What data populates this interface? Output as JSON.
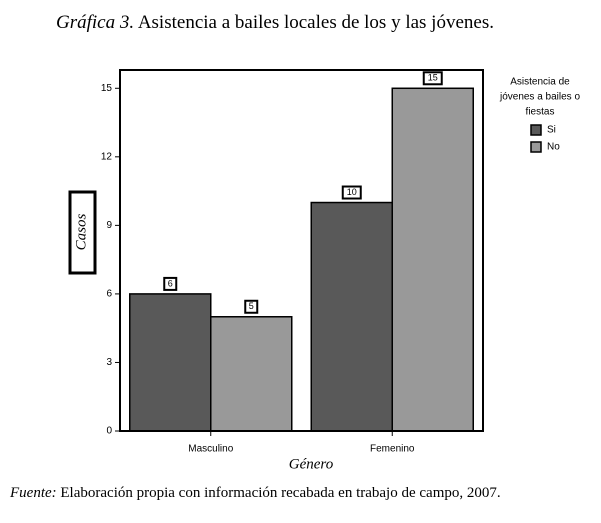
{
  "chart_data": {
    "type": "bar",
    "title_label": "Gráfica 3.",
    "title": "Asistencia a bailes locales de los y las jóvenes.",
    "categories": [
      "Masculino",
      "Femenino"
    ],
    "series": [
      {
        "name": "Si",
        "color": "#595959",
        "values": [
          6,
          10
        ]
      },
      {
        "name": "No",
        "color": "#999999",
        "values": [
          5,
          15
        ]
      }
    ],
    "ylim": [
      0,
      15.8
    ],
    "yticks": [
      0,
      3,
      6,
      9,
      12,
      15
    ],
    "ylabel": "Casos",
    "xlabel": "Género",
    "legend_title": [
      "Asistencia de",
      "jóvenes a bailes o",
      "fiestas"
    ],
    "legend_position": "right",
    "source_label": "Fuente:",
    "source": "Elaboración propia con información recabada en trabajo de campo, 2007."
  }
}
